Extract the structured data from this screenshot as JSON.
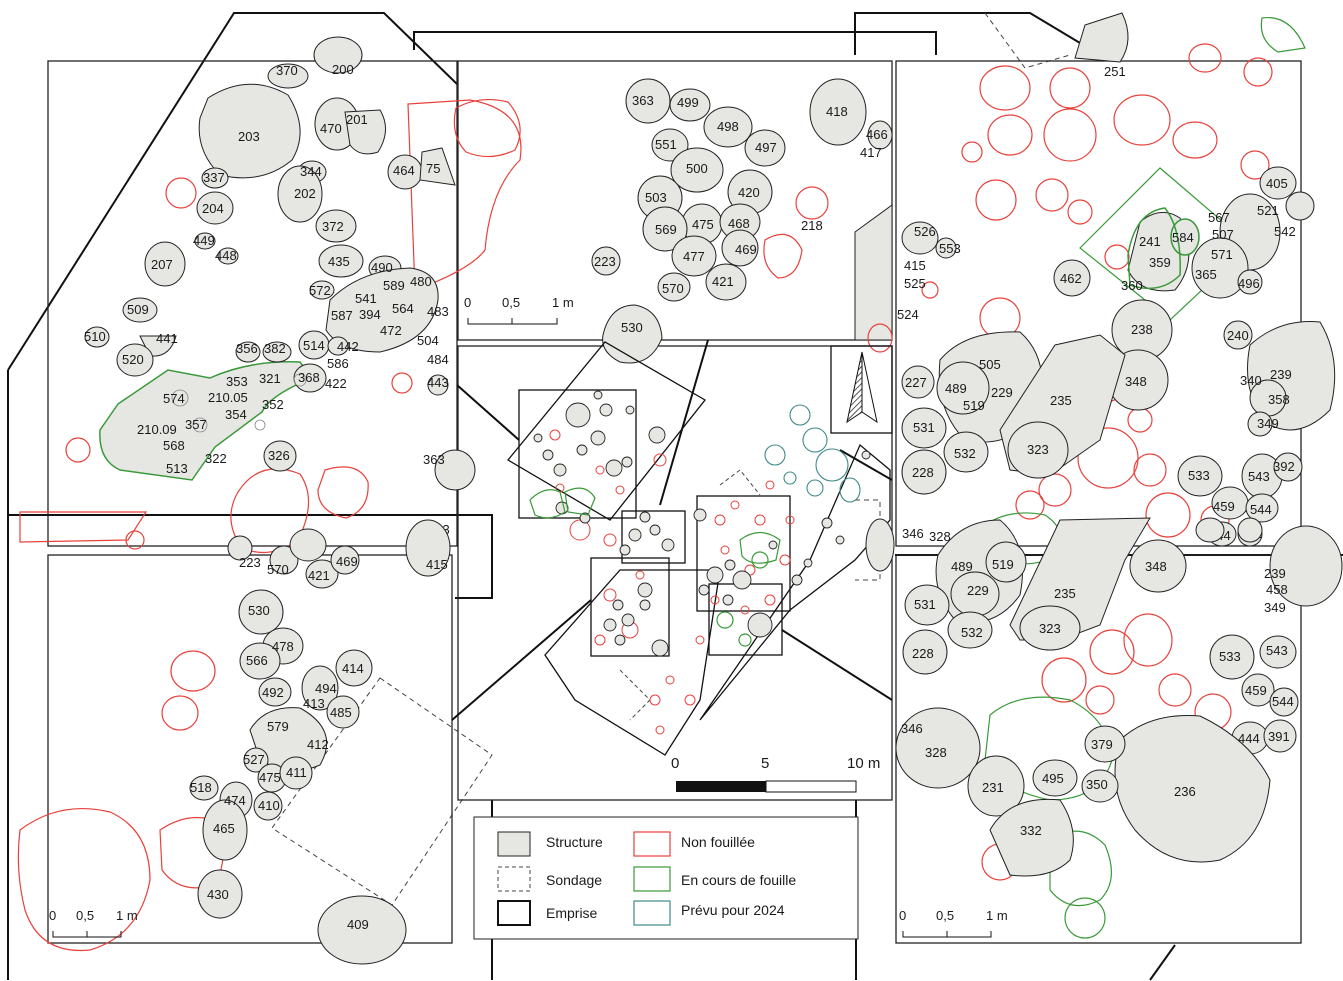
{
  "colors": {
    "structure_fill": "#e6e6e3",
    "structure_stroke": "#222222",
    "non_fouillee": "#e8413b",
    "en_cours": "#3a9a3a",
    "prevu_2024": "#3f8a8a",
    "emprise": "#111111",
    "sondage": "#444444"
  },
  "legend": {
    "structure": "Structure",
    "sondage": "Sondage",
    "emprise": "Emprise",
    "non_fouillee": "Non fouillée",
    "en_cours": "En cours de fouille",
    "prevu": "Prévu pour 2024"
  },
  "scales": {
    "detail": {
      "t0": "0",
      "t1": "0,5",
      "t2": "1 m"
    },
    "overview": {
      "t0": "0",
      "t1": "5",
      "t2": "10 m"
    }
  },
  "panels": {
    "top_left": {
      "labels": [
        "370",
        "200",
        "203",
        "201",
        "470",
        "337",
        "344",
        "202",
        "204",
        "372",
        "449",
        "448",
        "207",
        "435",
        "490",
        "572",
        "541",
        "589",
        "480",
        "509",
        "587",
        "394",
        "564",
        "483",
        "472",
        "510",
        "441",
        "520",
        "442",
        "504",
        "356",
        "382",
        "514",
        "586",
        "353",
        "321",
        "368",
        "422",
        "210.05",
        "574",
        "352",
        "354",
        "357",
        "210.09",
        "568",
        "322",
        "513",
        "326",
        "464",
        "75"
      ]
    },
    "top_middle": {
      "labels": [
        "363",
        "499",
        "551",
        "498",
        "497",
        "418",
        "466",
        "417",
        "500",
        "420",
        "503",
        "475",
        "468",
        "569",
        "218",
        "469",
        "477",
        "223",
        "421",
        "570",
        "530"
      ]
    },
    "top_right": {
      "labels": [
        "251",
        "405",
        "521",
        "567",
        "507",
        "542",
        "241",
        "584",
        "359",
        "571",
        "462",
        "360",
        "365",
        "496",
        "238",
        "240",
        "505",
        "348",
        "340",
        "239",
        "489",
        "229",
        "358",
        "235",
        "519",
        "349",
        "531",
        "532",
        "323",
        "392",
        "228",
        "533",
        "543",
        "459",
        "544",
        "444",
        "391",
        "526",
        "553",
        "415",
        "525",
        "524",
        "227",
        "227"
      ]
    },
    "bottom_left": {
      "labels": [
        "223",
        "570",
        "421",
        "469",
        "415",
        "530",
        "478",
        "566",
        "414",
        "494",
        "492",
        "413",
        "485",
        "579",
        "412",
        "527",
        "475",
        "411",
        "518",
        "474",
        "410",
        "465",
        "430",
        "409"
      ]
    },
    "bottom_right": {
      "labels": [
        "346",
        "328",
        "489",
        "519",
        "348",
        "239",
        "458",
        "349",
        "229",
        "235",
        "531",
        "532",
        "323",
        "228",
        "533",
        "543",
        "459",
        "544",
        "444",
        "391",
        "346",
        "328",
        "379",
        "231",
        "495",
        "350",
        "236",
        "332"
      ]
    },
    "center": {
      "labels": [
        "484",
        "443",
        "363",
        "503"
      ]
    }
  }
}
